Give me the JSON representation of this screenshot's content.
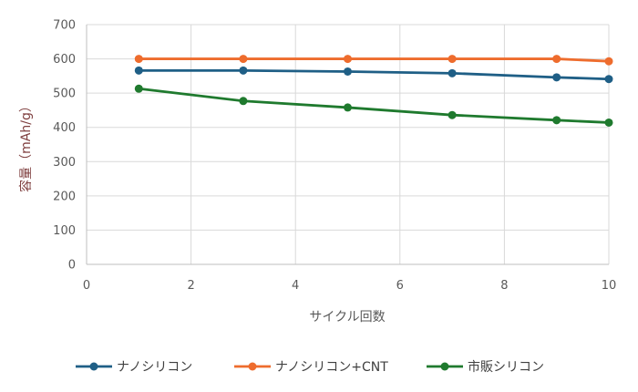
{
  "chart_data": {
    "type": "line",
    "xlabel": "サイクル回数",
    "ylabel": "容量（mAh/g）",
    "xlim": [
      0,
      10
    ],
    "ylim": [
      0,
      700
    ],
    "xticks": [
      0,
      2,
      4,
      6,
      8,
      10
    ],
    "yticks": [
      0,
      100,
      200,
      300,
      400,
      500,
      600,
      700
    ],
    "grid": true,
    "legend_position": "bottom",
    "x": [
      1,
      3,
      5,
      7,
      9,
      10
    ],
    "series": [
      {
        "name": "ナノシリコン",
        "color": "#1f5f86",
        "values": [
          566,
          566,
          563,
          558,
          546,
          541
        ]
      },
      {
        "name": "ナノシリコン+CNT",
        "color": "#ee6c2d",
        "values": [
          600,
          600,
          600,
          600,
          600,
          593
        ]
      },
      {
        "name": "市販シリコン",
        "color": "#1f7a2e",
        "values": [
          513,
          477,
          458,
          436,
          421,
          414
        ]
      }
    ]
  }
}
